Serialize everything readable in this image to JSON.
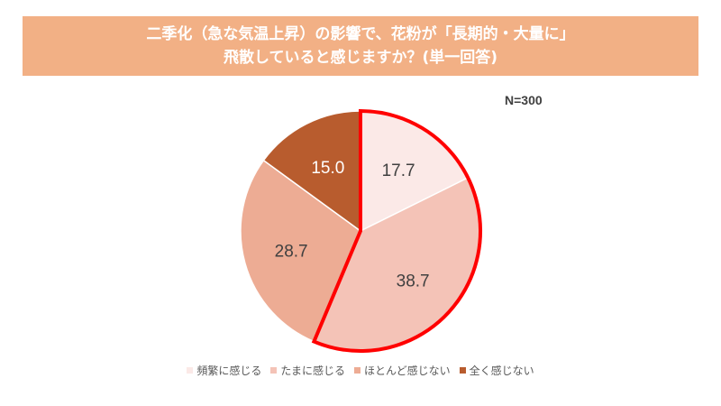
{
  "title": {
    "line1": "二季化（急な気温上昇）の影響で、花粉が「長期的・大量に」",
    "line2": "飛散していると感じますか？(単一回答)"
  },
  "sample_size": "N=300",
  "chart_data": {
    "type": "pie",
    "title": "二季化（急な気温上昇）の影響で、花粉が「長期的・大量に」飛散していると感じますか？(単一回答)",
    "annotation": "N=300",
    "categories": [
      "頻繁に感じる",
      "たまに感じる",
      "ほとんど感じない",
      "全く感じない"
    ],
    "values": [
      17.7,
      38.7,
      28.7,
      15.0
    ],
    "colors": [
      "#fbe9e7",
      "#f4c3b7",
      "#edac94",
      "#b85c2e"
    ],
    "label_colors": [
      "#404040",
      "#404040",
      "#404040",
      "#ffffff"
    ],
    "highlight": {
      "categories": [
        "頻繁に感じる",
        "たまに感じる"
      ],
      "outline_color": "#ff0000"
    },
    "start_angle": "12 o'clock, clockwise",
    "legend_position": "bottom"
  },
  "legend": [
    {
      "label": "頻繁に感じる",
      "color": "#fbe9e7"
    },
    {
      "label": "たまに感じる",
      "color": "#f4c3b7"
    },
    {
      "label": "ほとんど感じない",
      "color": "#edac94"
    },
    {
      "label": "全く感じない",
      "color": "#b85c2e"
    }
  ]
}
